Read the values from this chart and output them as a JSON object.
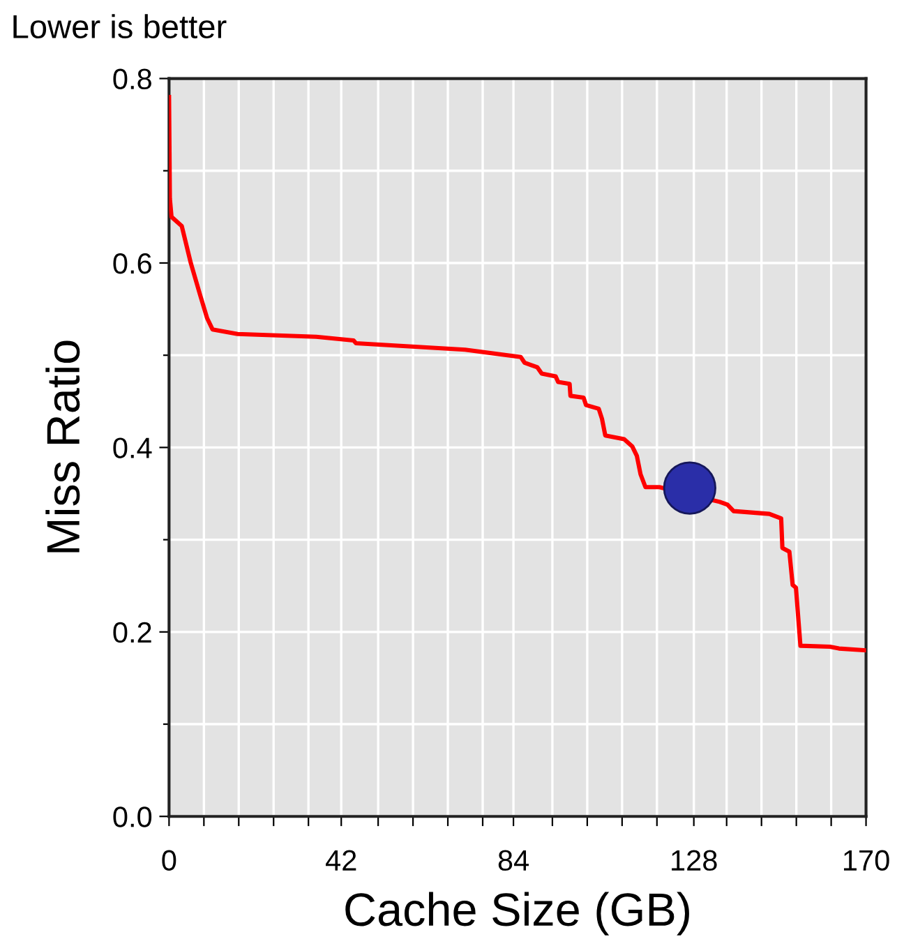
{
  "chart_data": {
    "type": "line",
    "title": "Lower is better",
    "xlabel": "Cache Size (GB)",
    "ylabel": "Miss Ratio",
    "xlim": [
      0,
      170
    ],
    "ylim": [
      0,
      0.8
    ],
    "xticks": [
      0,
      {
        "value": 8.5,
        "label": null
      },
      {
        "value": 17,
        "label": null
      },
      {
        "value": 25.5,
        "label": null
      },
      {
        "value": 34,
        "label": null
      },
      {
        "value": 42,
        "label": "42"
      },
      {
        "value": 51,
        "label": null
      },
      {
        "value": 59.5,
        "label": null
      },
      {
        "value": 68,
        "label": null
      },
      {
        "value": 76.5,
        "label": null
      },
      {
        "value": 84,
        "label": "84"
      },
      {
        "value": 93.5,
        "label": null
      },
      {
        "value": 102,
        "label": null
      },
      {
        "value": 110.5,
        "label": null
      },
      {
        "value": 119,
        "label": null
      },
      {
        "value": 128,
        "label": "128"
      },
      {
        "value": 136,
        "label": null
      },
      {
        "value": 144.5,
        "label": null
      },
      {
        "value": 153,
        "label": null
      },
      {
        "value": 161.5,
        "label": null
      },
      170
    ],
    "yticks": [
      {
        "value": 0,
        "label": "0.0"
      },
      {
        "value": 0.1,
        "label": null
      },
      0.2,
      {
        "value": 0.3,
        "label": null
      },
      0.4,
      {
        "value": 0.5,
        "label": null
      },
      0.6,
      {
        "value": 0.7,
        "label": null
      },
      0.8
    ],
    "grid": true,
    "legend": false,
    "series": [
      {
        "color": "#ff0000",
        "marker": "none",
        "line_style": "solid",
        "x": [
          0,
          0.2,
          0.6,
          3.1,
          5.3,
          7.6,
          9.3,
          10.6,
          16.7,
          35.9,
          45,
          45.6,
          72.2,
          85.8,
          86.7,
          89.8,
          90.9,
          94.3,
          94.9,
          97.7,
          97.9,
          101.1,
          101.7,
          104.8,
          105.6,
          106.4,
          111,
          113,
          114.1,
          115,
          116.2,
          119.6,
          134.3,
          136.2,
          137.7,
          146.4,
          149.3,
          149.6,
          151.3,
          152.1,
          152.9,
          154,
          161.2,
          163.4,
          170
        ],
        "values": [
          0.78,
          0.67,
          0.65,
          0.64,
          0.6,
          0.565,
          0.54,
          0.528,
          0.523,
          0.52,
          0.516,
          0.513,
          0.506,
          0.498,
          0.492,
          0.487,
          0.48,
          0.477,
          0.471,
          0.469,
          0.456,
          0.454,
          0.446,
          0.442,
          0.431,
          0.413,
          0.409,
          0.401,
          0.391,
          0.371,
          0.357,
          0.357,
          0.341,
          0.338,
          0.331,
          0.328,
          0.323,
          0.291,
          0.287,
          0.251,
          0.248,
          0.185,
          0.184,
          0.182,
          0.18
        ]
      },
      {
        "type": "scatter",
        "color": "#2a2ea8",
        "marker": "circle",
        "x": [
          127
        ],
        "values": [
          0.356
        ]
      }
    ]
  }
}
